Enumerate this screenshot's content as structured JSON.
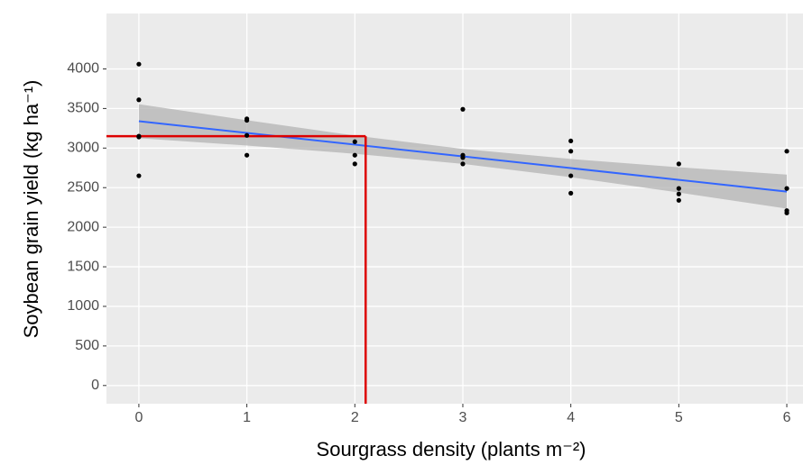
{
  "chart_data": {
    "type": "scatter",
    "x_label": "Sourgrass  density (plants m⁻²)",
    "y_label": "Soybean  grain  yield  (kg ha⁻¹)",
    "xlim": [
      -0.3,
      6.15
    ],
    "ylim": [
      -230,
      4700
    ],
    "xticks": [
      0,
      1,
      2,
      3,
      4,
      5,
      6
    ],
    "yticks": [
      0,
      500,
      1000,
      1500,
      2000,
      2500,
      3000,
      3500,
      4000
    ],
    "grid": true,
    "points": {
      "color": "#000000",
      "x": [
        0,
        0,
        0,
        0,
        0,
        1,
        1,
        1,
        1,
        2,
        2,
        2,
        3,
        3,
        3,
        3,
        4,
        4,
        4,
        4,
        5,
        5,
        5,
        5,
        6,
        6,
        6,
        6
      ],
      "values": [
        4060,
        3610,
        3150,
        3140,
        2650,
        3370,
        3350,
        3160,
        2910,
        3080,
        2910,
        2800,
        3490,
        2910,
        2880,
        2800,
        3090,
        2960,
        2650,
        2430,
        2800,
        2490,
        2420,
        2340,
        2960,
        2490,
        2210,
        2180
      ]
    },
    "fit": {
      "color": "#3366ff",
      "x": [
        0,
        6
      ],
      "values": [
        3340,
        2450
      ]
    },
    "band": {
      "color": "#b3b3b3",
      "x": [
        0,
        1,
        2,
        3,
        4,
        5,
        6
      ],
      "lower": [
        3125,
        3032,
        2928,
        2800,
        2632,
        2438,
        2235
      ],
      "upper": [
        3555,
        3352,
        3158,
        2990,
        2862,
        2758,
        2665
      ]
    },
    "reference": {
      "color": "#dd0000",
      "x": 2.1,
      "y": 3150
    }
  }
}
